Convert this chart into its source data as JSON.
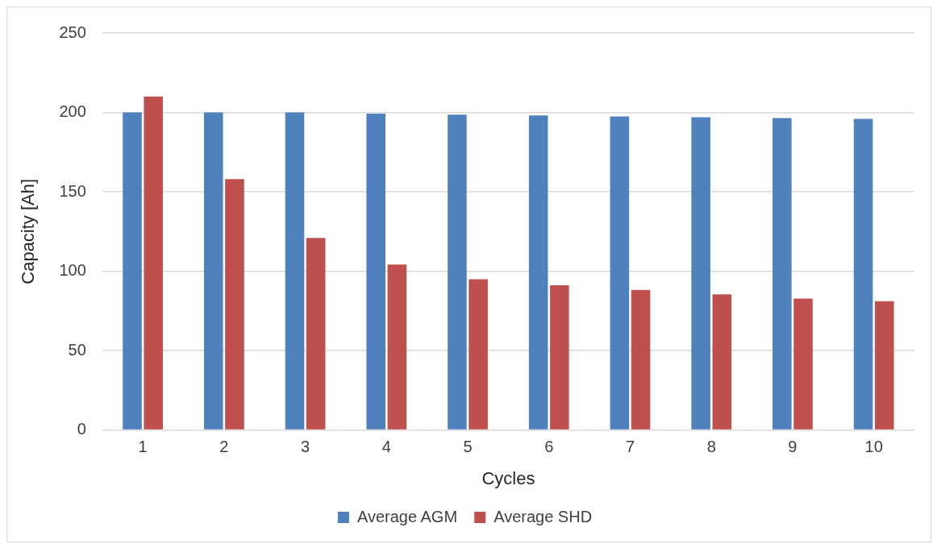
{
  "chart_data": {
    "type": "bar",
    "xlabel": "Cycles",
    "ylabel": "Capacity [Ah]",
    "categories": [
      "1",
      "2",
      "3",
      "4",
      "5",
      "6",
      "7",
      "8",
      "9",
      "10"
    ],
    "series": [
      {
        "name": "Average AGM",
        "color": "#4f81bd",
        "values": [
          200,
          200,
          200,
          199.3,
          198.6,
          198.1,
          197.5,
          197,
          196.5,
          195.9
        ]
      },
      {
        "name": "Average SHD",
        "color": "#c0504d",
        "values": [
          210,
          158,
          121,
          104.2,
          95,
          91.2,
          88.2,
          85.5,
          82.8,
          81.1
        ]
      }
    ],
    "ylim": [
      0,
      250
    ],
    "yticks": [
      0,
      50,
      100,
      150,
      200,
      250
    ],
    "grid": "y",
    "legend": "bottom"
  }
}
